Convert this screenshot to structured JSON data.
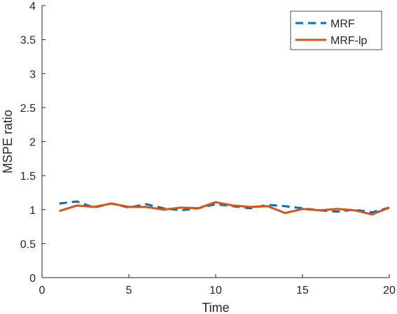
{
  "chart_data": {
    "type": "line",
    "xlabel": "Time",
    "ylabel": "MSPE ratio",
    "xlim": [
      0,
      20
    ],
    "ylim": [
      0,
      4
    ],
    "xticks": [
      "0",
      "5",
      "10",
      "15",
      "20"
    ],
    "yticks": [
      "0",
      "0.5",
      "1",
      "1.5",
      "2",
      "2.5",
      "3",
      "3.5",
      "4"
    ],
    "grid": false,
    "legend_position": "top-right",
    "x": [
      1,
      2,
      3,
      4,
      5,
      6,
      7,
      8,
      9,
      10,
      11,
      12,
      13,
      14,
      15,
      16,
      17,
      18,
      19,
      20
    ],
    "series": [
      {
        "name": "MRF",
        "style": "dashed",
        "color": "#0072BD",
        "values": [
          1.09,
          1.12,
          1.03,
          1.09,
          1.03,
          1.08,
          1.02,
          0.99,
          1.02,
          1.08,
          1.05,
          1.02,
          1.07,
          1.05,
          1.02,
          0.99,
          0.97,
          1.0,
          0.96,
          1.03
        ]
      },
      {
        "name": "MRF-lp",
        "style": "solid",
        "color": "#D95319",
        "values": [
          0.98,
          1.06,
          1.04,
          1.09,
          1.04,
          1.04,
          1.0,
          1.03,
          1.02,
          1.11,
          1.06,
          1.04,
          1.05,
          0.95,
          1.01,
          0.99,
          1.01,
          0.99,
          0.93,
          1.03
        ]
      }
    ]
  }
}
